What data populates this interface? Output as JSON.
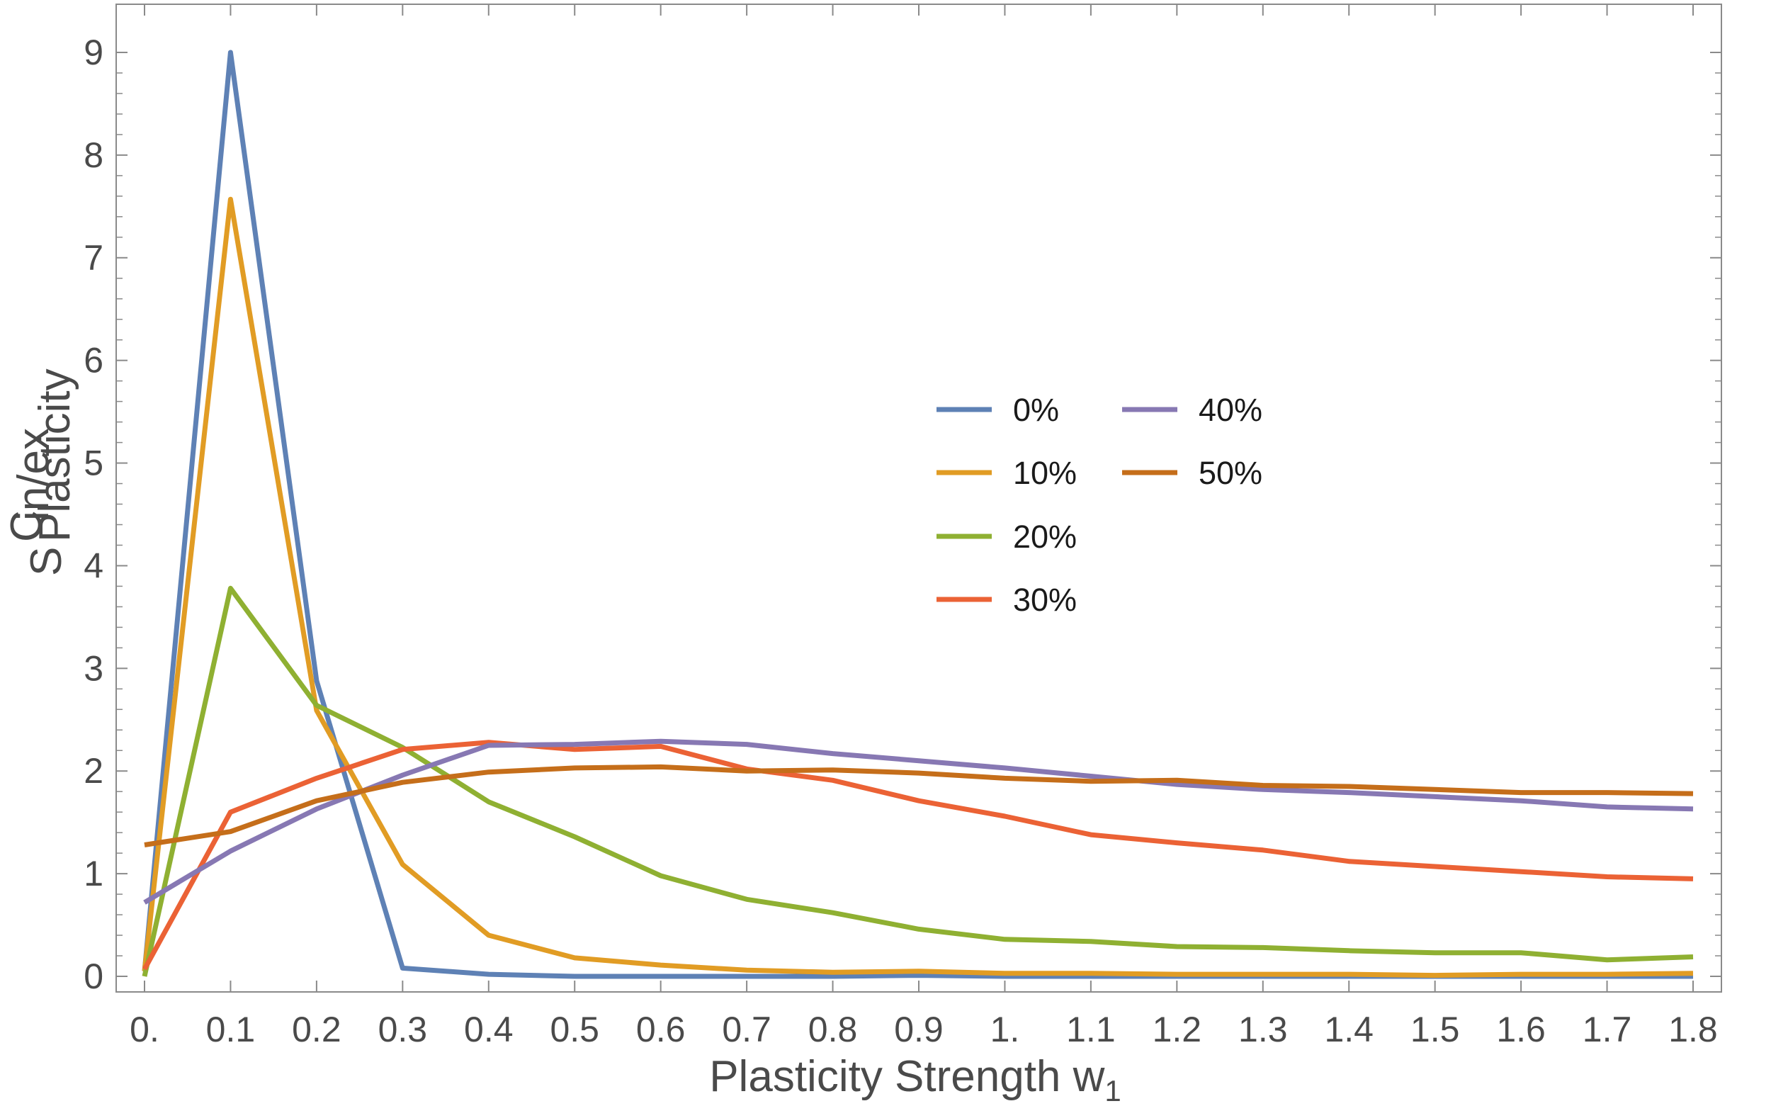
{
  "chart_data": {
    "type": "line",
    "title": "",
    "xlabel": "Plasticity Strength w",
    "xlabel_sub": "1",
    "ylabel": "S",
    "ylabel_sup": "C",
    "ylabel_sup_sub": "in/ex",
    "ylabel_sub": "Plasticity",
    "xlim": [
      0.0,
      1.8
    ],
    "ylim": [
      0,
      9
    ],
    "x_ticks": [
      0,
      0.1,
      0.2,
      0.3,
      0.4,
      0.5,
      0.6,
      0.7,
      0.8,
      0.9,
      1.0,
      1.1,
      1.2,
      1.3,
      1.4,
      1.5,
      1.6,
      1.7,
      1.8
    ],
    "x_tick_labels": [
      "0.",
      "0.1",
      "0.2",
      "0.3",
      "0.4",
      "0.5",
      "0.6",
      "0.7",
      "0.8",
      "0.9",
      "1.",
      "1.1",
      "1.2",
      "1.3",
      "1.4",
      "1.5",
      "1.6",
      "1.7",
      "1.8"
    ],
    "y_ticks": [
      0,
      1,
      2,
      3,
      4,
      5,
      6,
      7,
      8,
      9
    ],
    "y_tick_labels": [
      "0",
      "1",
      "2",
      "3",
      "4",
      "5",
      "6",
      "7",
      "8",
      "9"
    ],
    "legend_position": "center",
    "x": [
      0,
      0.1,
      0.2,
      0.3,
      0.4,
      0.5,
      0.6,
      0.7,
      0.8,
      0.9,
      1.0,
      1.1,
      1.2,
      1.3,
      1.4,
      1.5,
      1.6,
      1.7,
      1.8
    ],
    "series": [
      {
        "name": "0%",
        "color": "#5e81b5",
        "values": [
          0.05,
          9.0,
          2.88,
          0.08,
          0.02,
          0.0,
          0.0,
          0.0,
          0.0,
          0.01,
          0.0,
          0.0,
          0.0,
          0.0,
          0.0,
          0.0,
          0.0,
          0.0,
          0.0
        ]
      },
      {
        "name": "10%",
        "color": "#e19c24",
        "values": [
          0.05,
          7.57,
          2.59,
          1.09,
          0.4,
          0.18,
          0.11,
          0.06,
          0.04,
          0.05,
          0.03,
          0.03,
          0.02,
          0.02,
          0.02,
          0.01,
          0.02,
          0.02,
          0.03
        ]
      },
      {
        "name": "20%",
        "color": "#8fb032",
        "values": [
          0.0,
          3.78,
          2.64,
          2.23,
          1.7,
          1.36,
          0.98,
          0.75,
          0.62,
          0.46,
          0.36,
          0.34,
          0.29,
          0.28,
          0.25,
          0.23,
          0.23,
          0.16,
          0.19
        ]
      },
      {
        "name": "30%",
        "color": "#eb6235",
        "values": [
          0.07,
          1.6,
          1.93,
          2.21,
          2.28,
          2.21,
          2.24,
          2.02,
          1.91,
          1.71,
          1.56,
          1.38,
          1.3,
          1.23,
          1.12,
          1.07,
          1.02,
          0.97,
          0.95
        ]
      },
      {
        "name": "40%",
        "color": "#8778b3",
        "values": [
          0.72,
          1.22,
          1.63,
          1.96,
          2.25,
          2.26,
          2.29,
          2.26,
          2.17,
          2.1,
          2.03,
          1.95,
          1.87,
          1.82,
          1.79,
          1.75,
          1.71,
          1.65,
          1.63
        ]
      },
      {
        "name": "50%",
        "color": "#c56e1a",
        "values": [
          1.28,
          1.41,
          1.71,
          1.89,
          1.99,
          2.03,
          2.04,
          2.0,
          2.01,
          1.98,
          1.93,
          1.9,
          1.91,
          1.86,
          1.85,
          1.82,
          1.79,
          1.79,
          1.78
        ]
      }
    ]
  }
}
